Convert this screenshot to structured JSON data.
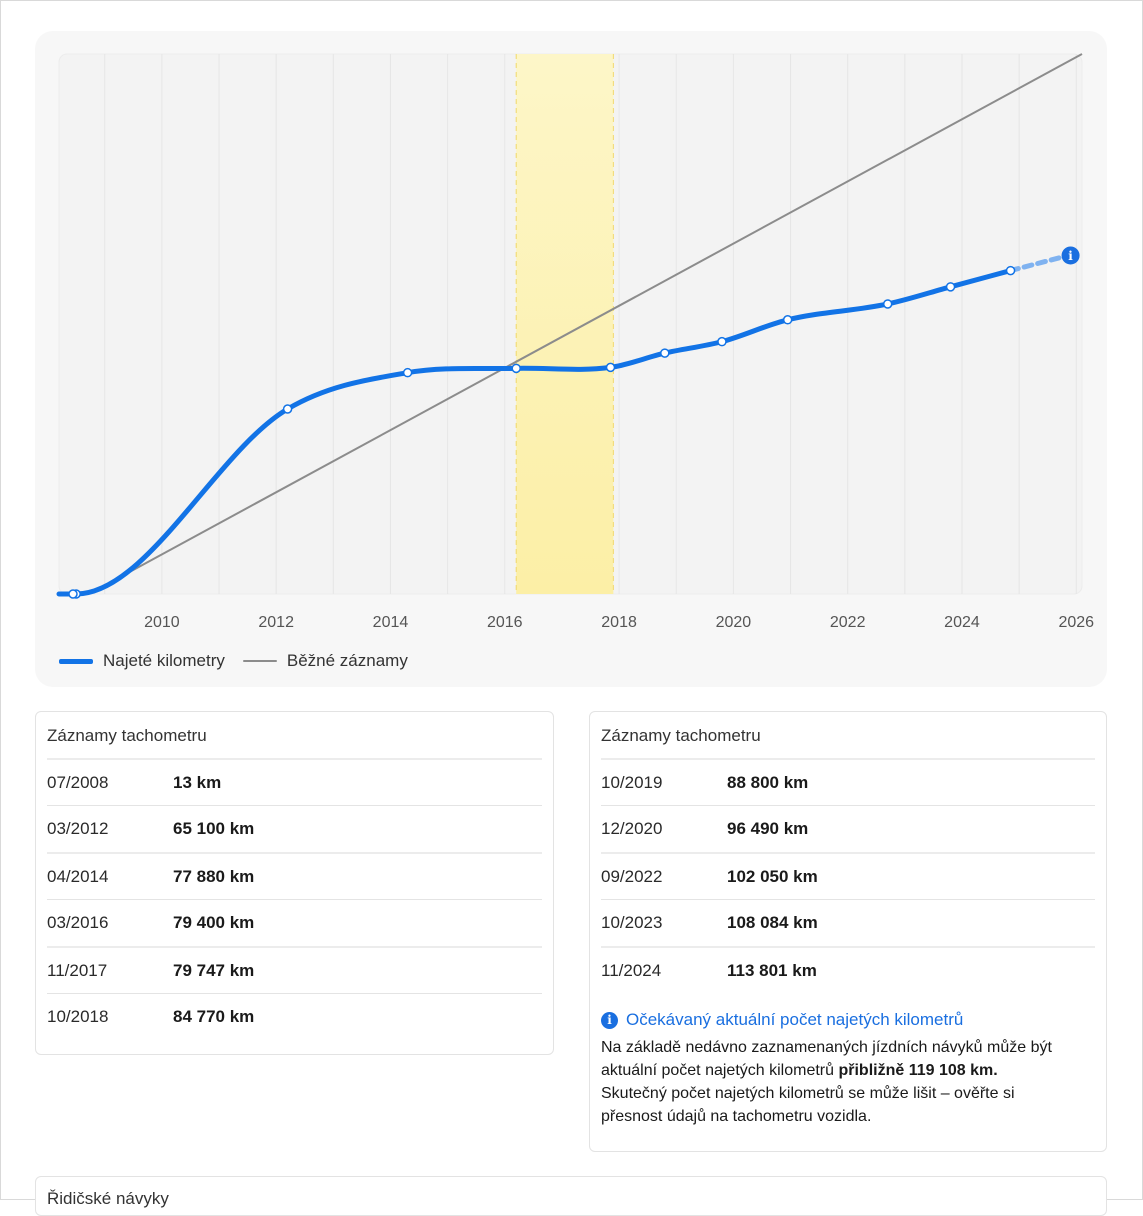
{
  "chart_data": {
    "type": "line",
    "title": "",
    "xlabel": "",
    "ylabel": "",
    "xlim": [
      2008.2,
      2026.1
    ],
    "ylim": [
      13,
      190000
    ],
    "x_ticks": [
      "2010",
      "2012",
      "2014",
      "2016",
      "2018",
      "2020",
      "2022",
      "2024",
      "2026"
    ],
    "highlight_range": [
      2016.2,
      2017.9
    ],
    "series": [
      {
        "name": "Najeté kilometry",
        "color": "#1273e6",
        "points": [
          {
            "x": 2008.5,
            "y": 13
          },
          {
            "x": 2012.2,
            "y": 65100
          },
          {
            "x": 2014.3,
            "y": 77880
          },
          {
            "x": 2016.2,
            "y": 79400
          },
          {
            "x": 2017.85,
            "y": 79747
          },
          {
            "x": 2018.8,
            "y": 84770
          },
          {
            "x": 2019.8,
            "y": 88800
          },
          {
            "x": 2020.95,
            "y": 96490
          },
          {
            "x": 2022.7,
            "y": 102050
          },
          {
            "x": 2023.8,
            "y": 108084
          },
          {
            "x": 2024.85,
            "y": 113801
          }
        ],
        "projected": {
          "x": 2025.9,
          "y": 119108
        }
      },
      {
        "name": "Běžné záznamy",
        "color": "#8c8c8c",
        "points": [
          {
            "x": 2009.0,
            "y": 3000
          },
          {
            "x": 2026.1,
            "y": 190000
          }
        ]
      }
    ],
    "legend_placement": "bottom-left"
  },
  "legend": {
    "mileage": "Najeté kilometry",
    "typical": "Běžné záznamy"
  },
  "left_table": {
    "title": "Záznamy tachometru",
    "rows": [
      {
        "date": "07/2008",
        "km": "13 km"
      },
      {
        "date": "03/2012",
        "km": "65 100 km"
      },
      {
        "date": "04/2014",
        "km": "77 880 km"
      },
      {
        "date": "03/2016",
        "km": "79 400 km"
      },
      {
        "date": "11/2017",
        "km": "79 747 km"
      },
      {
        "date": "10/2018",
        "km": "84 770 km"
      }
    ]
  },
  "right_table": {
    "title": "Záznamy tachometru",
    "rows": [
      {
        "date": "10/2019",
        "km": "88 800 km"
      },
      {
        "date": "12/2020",
        "km": "96 490 km"
      },
      {
        "date": "09/2022",
        "km": "102 050 km"
      },
      {
        "date": "10/2023",
        "km": "108 084 km"
      },
      {
        "date": "11/2024",
        "km": "113 801 km"
      }
    ],
    "note_title": "Očekávaný aktuální počet najetých kilometrů",
    "note_text_1": "Na základě nedávno zaznamenaných jízdních návyků může být aktuální počet najetých kilometrů ",
    "note_bold_1": "přibližně 119 108 km.",
    "note_text_2": " Skutečný počet najetých kilometrů se může lišit – ověřte si přesnost údajů na tachometru vozidla.",
    "info_glyph": "i"
  },
  "bottom_section": {
    "title": "Řidičské návyky"
  }
}
